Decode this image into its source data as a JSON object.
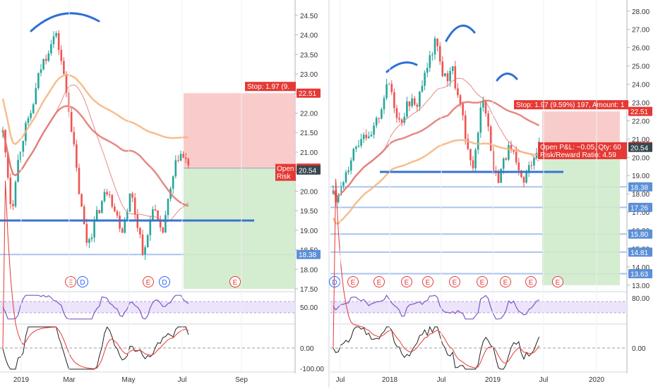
{
  "chart_data": [
    {
      "type": "candlestick",
      "panel": "left",
      "x_tick_labels": [
        "2019",
        "Mar",
        "May",
        "Jul",
        "Sep"
      ],
      "y_tick_labels": [
        "24.50",
        "24.00",
        "23.50",
        "23.00",
        "22.50",
        "22.00",
        "21.50",
        "21.00",
        "20.50",
        "20.00",
        "19.50",
        "19.00",
        "18.50",
        "18.00",
        "17.50"
      ],
      "ylim": [
        17.5,
        24.75
      ],
      "price_path": [
        21.5,
        20.6,
        19.4,
        20.5,
        21.1,
        21.6,
        21.8,
        22.3,
        22.9,
        23.3,
        23.5,
        23.9,
        24.0,
        23.5,
        22.8,
        22.1,
        21.2,
        20.2,
        19.4,
        18.7,
        18.9,
        19.3,
        19.6,
        19.9,
        20.1,
        19.6,
        19.3,
        19.0,
        19.5,
        20.0,
        19.4,
        18.9,
        18.3,
        19.0,
        19.7,
        19.2,
        18.8,
        19.5,
        20.0,
        20.6,
        21.0,
        20.8,
        20.7
      ],
      "horizontal_levels": [
        19.25,
        18.38
      ],
      "red_box": {
        "top": 22.51,
        "bottom": 20.59
      },
      "green_box": {
        "top": 20.59,
        "bottom": 17.5
      },
      "price_tags": [
        {
          "text": "22.51",
          "value": 22.51,
          "color": "#e53935"
        },
        {
          "text": "20.59",
          "value": 20.59,
          "color": "#e53935"
        },
        {
          "text": "20.54",
          "value": 20.54,
          "color": "#37474f"
        },
        {
          "text": "18.38",
          "value": 18.38,
          "color": "#5c8fd6"
        }
      ],
      "stop_label": "Stop: 1.97 (9.",
      "open_label": "Open",
      "risk_label": "Risk",
      "event_markers": [
        "E",
        "D",
        "E",
        "D",
        "E"
      ],
      "rsi": {
        "tick_labels": [
          "50.00"
        ],
        "ylim": [
          0,
          100
        ]
      },
      "macd": {
        "tick_labels": [
          "0.00",
          "-100.00"
        ]
      }
    },
    {
      "type": "candlestick",
      "panel": "right",
      "x_tick_labels": [
        "Jul",
        "2018",
        "Jul",
        "2019",
        "Jul",
        "2020"
      ],
      "y_tick_labels": [
        "28.00",
        "27.00",
        "26.00",
        "25.00",
        "24.00",
        "23.00",
        "22.00",
        "21.00",
        "20.00",
        "19.00",
        "18.00",
        "17.00",
        "16.00",
        "15.00",
        "14.00",
        "13.00"
      ],
      "ylim": [
        12.8,
        28.3
      ],
      "price_path": [
        18.0,
        17.6,
        18.8,
        19.6,
        20.5,
        20.9,
        21.5,
        20.8,
        21.6,
        22.4,
        23.5,
        24.1,
        22.7,
        21.9,
        22.6,
        23.2,
        22.6,
        23.8,
        24.6,
        25.6,
        26.4,
        24.8,
        24.2,
        25.1,
        23.5,
        22.4,
        20.3,
        19.4,
        20.8,
        23.6,
        22.0,
        19.4,
        18.8,
        19.7,
        20.4,
        20.1,
        19.0,
        18.6,
        19.4,
        20.2,
        20.6
      ],
      "horizontal_levels": [
        19.2,
        18.38,
        17.26,
        15.8,
        14.81,
        13.63
      ],
      "red_box": {
        "top": 22.51,
        "bottom": 20.59
      },
      "green_box": {
        "top": 20.59,
        "bottom": 13.0
      },
      "price_tags": [
        {
          "text": "22.51",
          "value": 22.51,
          "color": "#e53935"
        },
        {
          "text": "20.59",
          "value": 20.59,
          "color": "#e53935"
        },
        {
          "text": "20.54",
          "value": 20.54,
          "color": "#37474f"
        },
        {
          "text": "18.38",
          "value": 18.38,
          "color": "#5c8fd6"
        },
        {
          "text": "17.26",
          "value": 17.26,
          "color": "#5c8fd6"
        },
        {
          "text": "15.80",
          "value": 15.8,
          "color": "#5c8fd6"
        },
        {
          "text": "14.81",
          "value": 14.81,
          "color": "#5c8fd6"
        },
        {
          "text": "13.63",
          "value": 13.63,
          "color": "#5c8fd6"
        }
      ],
      "stop_label": "Stop: 1.97 (9.59%) 197, Amount: 1",
      "pnl_label": "Open P&L: −0.05, Qty: 60",
      "rr_label": "Risk/Reward Ratio: 4.59",
      "event_markers": [
        "D",
        "E",
        "E",
        "E",
        "E",
        "E",
        "E",
        "E",
        "E",
        "E"
      ],
      "rsi": {
        "tick_labels": [
          "80.00"
        ],
        "ylim": [
          0,
          100
        ]
      },
      "macd": {
        "tick_labels": [
          "0.00"
        ]
      }
    }
  ],
  "colors": {
    "up": "#26a69a",
    "down": "#ef5350",
    "ma_fast": "#e57373",
    "ma_slow": "#e2746f",
    "ma_long": "#f6b27a",
    "trend_line": "#3a72d0",
    "annotation": "#2f6fd6",
    "risk_fill": "#f8c6c6",
    "reward_fill": "#cfeacb",
    "rsi_line": "#7e57c2",
    "rsi_band": "#ece4fb"
  }
}
